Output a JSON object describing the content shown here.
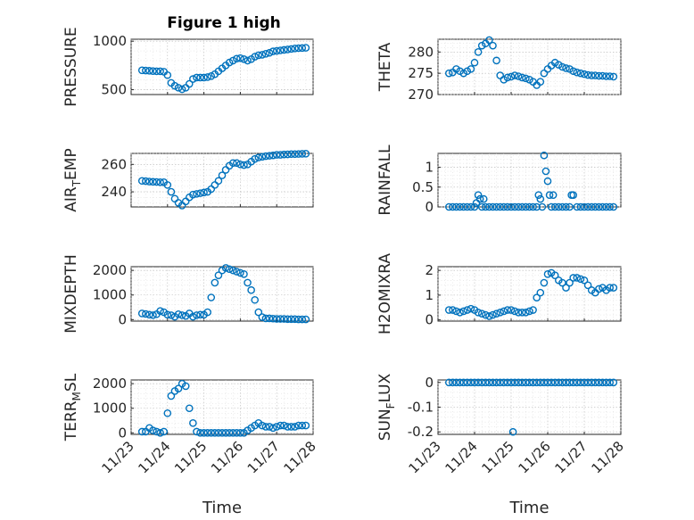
{
  "figure": {
    "title": "Figure 1 high",
    "marker_color": "#0072BD"
  },
  "chart_data": [
    {
      "type": "scatter",
      "id": "pressure",
      "ylabel": "PRESSURE",
      "xlabel": "",
      "xlim": [
        0,
        5
      ],
      "ylim": [
        450,
        1020
      ],
      "yticks": [
        500,
        1000
      ],
      "ytick_labels": [
        "500",
        "1000"
      ],
      "xticks": [
        0,
        1,
        2,
        3,
        4,
        5
      ],
      "show_xticklabels": false,
      "grid": true,
      "x": [
        0.3,
        0.4,
        0.5,
        0.6,
        0.7,
        0.8,
        0.9,
        1.0,
        1.1,
        1.2,
        1.3,
        1.4,
        1.5,
        1.6,
        1.7,
        1.8,
        1.9,
        2.0,
        2.1,
        2.2,
        2.3,
        2.4,
        2.5,
        2.6,
        2.7,
        2.8,
        2.9,
        3.0,
        3.1,
        3.2,
        3.3,
        3.4,
        3.5,
        3.6,
        3.7,
        3.8,
        3.9,
        4.0,
        4.1,
        4.2,
        4.3,
        4.4,
        4.5,
        4.6,
        4.7,
        4.8
      ],
      "y": [
        700,
        698,
        695,
        692,
        690,
        690,
        685,
        650,
        570,
        540,
        520,
        505,
        520,
        560,
        610,
        625,
        625,
        625,
        630,
        640,
        660,
        690,
        720,
        750,
        780,
        800,
        820,
        825,
        815,
        800,
        815,
        840,
        855,
        860,
        870,
        880,
        895,
        900,
        905,
        910,
        915,
        920,
        925,
        928,
        930,
        932
      ]
    },
    {
      "type": "scatter",
      "id": "theta",
      "ylabel": "THETA",
      "xlabel": "",
      "xlim": [
        0,
        5
      ],
      "ylim": [
        270,
        283
      ],
      "yticks": [
        270,
        275,
        280
      ],
      "ytick_labels": [
        "270",
        "275",
        "280"
      ],
      "xticks": [
        0,
        1,
        2,
        3,
        4,
        5
      ],
      "show_xticklabels": false,
      "grid": true,
      "x": [
        0.3,
        0.4,
        0.5,
        0.6,
        0.7,
        0.8,
        0.9,
        1.0,
        1.1,
        1.2,
        1.3,
        1.4,
        1.5,
        1.6,
        1.7,
        1.8,
        1.9,
        2.0,
        2.1,
        2.2,
        2.3,
        2.4,
        2.5,
        2.6,
        2.7,
        2.8,
        2.9,
        3.0,
        3.1,
        3.2,
        3.3,
        3.4,
        3.5,
        3.6,
        3.7,
        3.8,
        3.9,
        4.0,
        4.1,
        4.2,
        4.3,
        4.4,
        4.5,
        4.6,
        4.7,
        4.8
      ],
      "y": [
        275,
        275.2,
        276,
        275.5,
        275,
        275.5,
        276,
        277.5,
        280,
        281.5,
        282,
        282.8,
        281.5,
        278,
        274.5,
        273.5,
        274,
        274.2,
        274.5,
        274.3,
        274,
        273.8,
        273.5,
        273,
        272.2,
        273,
        275,
        276,
        276.8,
        277.5,
        277,
        276.5,
        276.2,
        276,
        275.5,
        275.2,
        275,
        274.8,
        274.6,
        274.5,
        274.5,
        274.4,
        274.4,
        274.3,
        274.3,
        274.2
      ]
    },
    {
      "type": "scatter",
      "id": "air_temp",
      "ylabel": "AIR_TEMP",
      "xlabel": "",
      "xlim": [
        0,
        5
      ],
      "ylim": [
        229,
        268
      ],
      "yticks": [
        240,
        260
      ],
      "ytick_labels": [
        "240",
        "260"
      ],
      "xticks": [
        0,
        1,
        2,
        3,
        4,
        5
      ],
      "show_xticklabels": false,
      "grid": true,
      "x": [
        0.3,
        0.4,
        0.5,
        0.6,
        0.7,
        0.8,
        0.9,
        1.0,
        1.1,
        1.2,
        1.3,
        1.4,
        1.5,
        1.6,
        1.7,
        1.8,
        1.9,
        2.0,
        2.1,
        2.2,
        2.3,
        2.4,
        2.5,
        2.6,
        2.7,
        2.8,
        2.9,
        3.0,
        3.1,
        3.2,
        3.3,
        3.4,
        3.5,
        3.6,
        3.7,
        3.8,
        3.9,
        4.0,
        4.1,
        4.2,
        4.3,
        4.4,
        4.5,
        4.6,
        4.7,
        4.8
      ],
      "y": [
        248,
        247.8,
        247.5,
        247.3,
        247.2,
        247,
        247,
        245,
        240,
        235,
        232,
        230,
        233,
        236,
        238,
        238.5,
        239,
        239.5,
        240,
        242,
        245,
        248,
        252,
        256,
        259,
        261,
        261,
        260,
        259.5,
        260,
        262,
        264,
        265,
        265.5,
        266,
        266.3,
        266.6,
        267,
        267,
        267.2,
        267.3,
        267.5,
        267.5,
        267.6,
        267.7,
        267.8
      ]
    },
    {
      "type": "scatter",
      "id": "rainfall",
      "ylabel": "RAINFALL",
      "xlabel": "",
      "xlim": [
        0,
        5
      ],
      "ylim": [
        0,
        1.35
      ],
      "yticks": [
        0,
        0.5,
        1
      ],
      "ytick_labels": [
        "0",
        "0.5",
        "1"
      ],
      "xticks": [
        0,
        1,
        2,
        3,
        4,
        5
      ],
      "show_xticklabels": false,
      "grid": true,
      "x": [
        0.3,
        0.4,
        0.5,
        0.6,
        0.7,
        0.8,
        0.9,
        1.0,
        1.05,
        1.1,
        1.15,
        1.2,
        1.25,
        1.3,
        1.4,
        1.5,
        1.6,
        1.7,
        1.8,
        1.9,
        2.0,
        2.1,
        2.2,
        2.3,
        2.4,
        2.5,
        2.6,
        2.7,
        2.75,
        2.8,
        2.85,
        2.9,
        2.95,
        3.0,
        3.05,
        3.1,
        3.15,
        3.2,
        3.3,
        3.4,
        3.5,
        3.6,
        3.65,
        3.7,
        3.8,
        3.9,
        4.0,
        4.1,
        4.2,
        4.3,
        4.4,
        4.5,
        4.6,
        4.7,
        4.8
      ],
      "y": [
        0,
        0,
        0,
        0,
        0,
        0,
        0,
        0,
        0.1,
        0.3,
        0.2,
        0,
        0.2,
        0,
        0,
        0,
        0,
        0,
        0,
        0,
        0,
        0,
        0,
        0,
        0,
        0,
        0,
        0,
        0.3,
        0.2,
        0,
        1.3,
        0.9,
        0.65,
        0.3,
        0,
        0.3,
        0,
        0,
        0,
        0,
        0,
        0.3,
        0.3,
        0,
        0,
        0,
        0,
        0,
        0,
        0,
        0,
        0,
        0,
        0
      ]
    },
    {
      "type": "scatter",
      "id": "mixdepth",
      "ylabel": "MIXDEPTH",
      "xlabel": "",
      "xlim": [
        0,
        5
      ],
      "ylim": [
        -60,
        2150
      ],
      "yticks": [
        0,
        1000,
        2000
      ],
      "ytick_labels": [
        "0",
        "1000",
        "2000"
      ],
      "xticks": [
        0,
        1,
        2,
        3,
        4,
        5
      ],
      "show_xticklabels": false,
      "grid": true,
      "x": [
        0.3,
        0.4,
        0.5,
        0.6,
        0.7,
        0.8,
        0.9,
        1.0,
        1.1,
        1.2,
        1.3,
        1.4,
        1.5,
        1.6,
        1.7,
        1.8,
        1.9,
        2.0,
        2.1,
        2.2,
        2.3,
        2.4,
        2.5,
        2.6,
        2.7,
        2.8,
        2.9,
        3.0,
        3.1,
        3.2,
        3.3,
        3.4,
        3.5,
        3.6,
        3.7,
        3.8,
        3.9,
        4.0,
        4.1,
        4.2,
        4.3,
        4.4,
        4.5,
        4.6,
        4.7,
        4.8
      ],
      "y": [
        250,
        230,
        200,
        180,
        220,
        350,
        300,
        200,
        180,
        120,
        220,
        180,
        150,
        250,
        120,
        180,
        200,
        200,
        300,
        900,
        1500,
        1800,
        2000,
        2100,
        2050,
        2000,
        1950,
        1900,
        1850,
        1500,
        1200,
        800,
        300,
        100,
        50,
        50,
        40,
        30,
        30,
        30,
        20,
        20,
        20,
        10,
        10,
        10
      ]
    },
    {
      "type": "scatter",
      "id": "h2omixra",
      "ylabel": "H2OMIXRA",
      "xlabel": "",
      "xlim": [
        0,
        5
      ],
      "ylim": [
        -0.05,
        2.15
      ],
      "yticks": [
        0,
        1,
        2
      ],
      "ytick_labels": [
        "0",
        "1",
        "2"
      ],
      "xticks": [
        0,
        1,
        2,
        3,
        4,
        5
      ],
      "show_xticklabels": false,
      "grid": true,
      "x": [
        0.3,
        0.4,
        0.5,
        0.6,
        0.7,
        0.8,
        0.9,
        1.0,
        1.1,
        1.2,
        1.3,
        1.4,
        1.5,
        1.6,
        1.7,
        1.8,
        1.9,
        2.0,
        2.1,
        2.2,
        2.3,
        2.4,
        2.5,
        2.6,
        2.7,
        2.8,
        2.9,
        3.0,
        3.1,
        3.2,
        3.3,
        3.4,
        3.5,
        3.6,
        3.7,
        3.8,
        3.9,
        4.0,
        4.1,
        4.2,
        4.3,
        4.4,
        4.5,
        4.6,
        4.7,
        4.8
      ],
      "y": [
        0.4,
        0.4,
        0.35,
        0.3,
        0.35,
        0.4,
        0.45,
        0.4,
        0.3,
        0.25,
        0.2,
        0.15,
        0.2,
        0.25,
        0.3,
        0.35,
        0.4,
        0.4,
        0.35,
        0.3,
        0.3,
        0.3,
        0.35,
        0.4,
        0.9,
        1.1,
        1.5,
        1.85,
        1.9,
        1.8,
        1.6,
        1.5,
        1.3,
        1.5,
        1.7,
        1.7,
        1.65,
        1.6,
        1.4,
        1.2,
        1.1,
        1.25,
        1.3,
        1.2,
        1.3,
        1.3
      ]
    },
    {
      "type": "scatter",
      "id": "terr_msl",
      "ylabel": "TERR_MSL",
      "xlabel": "Time",
      "xlim": [
        0,
        5
      ],
      "ylim": [
        -60,
        2150
      ],
      "yticks": [
        0,
        1000,
        2000
      ],
      "ytick_labels": [
        "0",
        "1000",
        "2000"
      ],
      "xticks": [
        0,
        1,
        2,
        3,
        4,
        5
      ],
      "xtick_labels": [
        "11/23",
        "11/24",
        "11/25",
        "11/26",
        "11/27",
        "11/28"
      ],
      "show_xticklabels": true,
      "grid": true,
      "x": [
        0.3,
        0.4,
        0.5,
        0.6,
        0.7,
        0.8,
        0.9,
        1.0,
        1.1,
        1.2,
        1.3,
        1.4,
        1.5,
        1.6,
        1.7,
        1.8,
        1.9,
        2.0,
        2.1,
        2.2,
        2.3,
        2.4,
        2.5,
        2.6,
        2.7,
        2.8,
        2.9,
        3.0,
        3.1,
        3.2,
        3.3,
        3.4,
        3.5,
        3.6,
        3.7,
        3.8,
        3.9,
        4.0,
        4.1,
        4.2,
        4.3,
        4.4,
        4.5,
        4.6,
        4.7,
        4.8
      ],
      "y": [
        50,
        50,
        200,
        100,
        50,
        0,
        50,
        800,
        1500,
        1700,
        1800,
        2000,
        1900,
        1000,
        400,
        50,
        0,
        0,
        0,
        0,
        0,
        0,
        0,
        0,
        0,
        0,
        0,
        0,
        0,
        100,
        200,
        300,
        400,
        300,
        250,
        250,
        200,
        250,
        300,
        300,
        250,
        250,
        250,
        300,
        300,
        300
      ]
    },
    {
      "type": "scatter",
      "id": "sun_flux",
      "ylabel": "SUN_FLUX",
      "xlabel": "Time",
      "xlim": [
        0,
        5
      ],
      "ylim": [
        -0.21,
        0.01
      ],
      "yticks": [
        -0.2,
        -0.1,
        0
      ],
      "ytick_labels": [
        "-0.2",
        "-0.1",
        "0"
      ],
      "xticks": [
        0,
        1,
        2,
        3,
        4,
        5
      ],
      "xtick_labels": [
        "11/23",
        "11/24",
        "11/25",
        "11/26",
        "11/27",
        "11/28"
      ],
      "show_xticklabels": true,
      "grid": true,
      "x": [
        0.3,
        0.4,
        0.5,
        0.6,
        0.7,
        0.8,
        0.9,
        1.0,
        1.1,
        1.2,
        1.3,
        1.4,
        1.5,
        1.6,
        1.7,
        1.8,
        1.9,
        2.0,
        2.1,
        2.2,
        2.3,
        2.4,
        2.5,
        2.6,
        2.7,
        2.8,
        2.9,
        3.0,
        3.1,
        3.2,
        3.3,
        3.4,
        3.5,
        3.6,
        3.7,
        3.8,
        3.9,
        4.0,
        4.1,
        4.2,
        4.3,
        4.4,
        4.5,
        4.6,
        4.7,
        4.8,
        2.05
      ],
      "y": [
        0,
        0,
        0,
        0,
        0,
        0,
        0,
        0,
        0,
        0,
        0,
        0,
        0,
        0,
        0,
        0,
        0,
        0,
        0,
        0,
        0,
        0,
        0,
        0,
        0,
        0,
        0,
        0,
        0,
        0,
        0,
        0,
        0,
        0,
        0,
        0,
        0,
        0,
        0,
        0,
        0,
        0,
        0,
        0,
        0,
        0,
        -0.2
      ]
    }
  ]
}
